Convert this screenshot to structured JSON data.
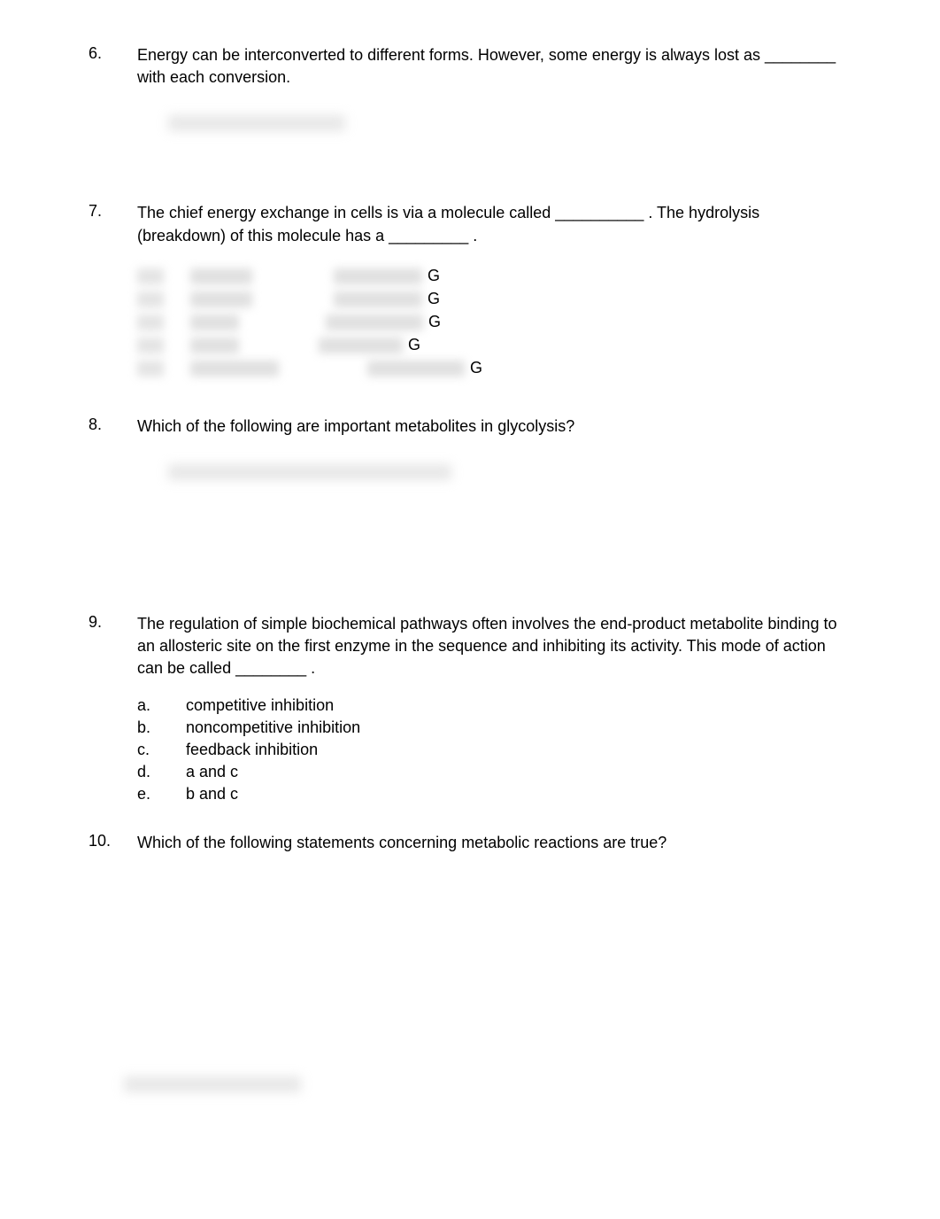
{
  "questions": [
    {
      "number": "6.",
      "text": "Energy can be interconverted to different forms. However, some energy is always lost as ________ with each conversion."
    },
    {
      "number": "7.",
      "text": "The chief energy exchange in cells is via a molecule called __________ . The hydrolysis (breakdown) of this molecule has a _________ ."
    },
    {
      "number": "8.",
      "text": "Which of the following are important metabolites in glycolysis?"
    },
    {
      "number": "9.",
      "text": "The regulation of simple biochemical pathways often involves the end-product metabolite binding to an allosteric site on the first enzyme in the sequence and inhibiting its activity. This mode of action can be called ________ .",
      "options": [
        {
          "letter": "a.",
          "text": "competitive inhibition"
        },
        {
          "letter": "b.",
          "text": "noncompetitive inhibition"
        },
        {
          "letter": "c.",
          "text": "feedback inhibition"
        },
        {
          "letter": "d.",
          "text": "a and c"
        },
        {
          "letter": "e.",
          "text": "b and c"
        }
      ]
    },
    {
      "number": "10.",
      "text": "Which of the following statements concerning metabolic reactions are true?"
    }
  ],
  "g_rows": [
    {
      "mid_width": 70,
      "right_width": 100,
      "pad": 2,
      "letter": "G"
    },
    {
      "mid_width": 70,
      "right_width": 100,
      "pad": 2,
      "letter": "G"
    },
    {
      "mid_width": 55,
      "right_width": 110,
      "pad": 8,
      "letter": "G"
    },
    {
      "mid_width": 55,
      "right_width": 95,
      "pad": 0,
      "letter": "G"
    },
    {
      "mid_width": 100,
      "right_width": 110,
      "pad": 10,
      "letter": "G"
    }
  ]
}
